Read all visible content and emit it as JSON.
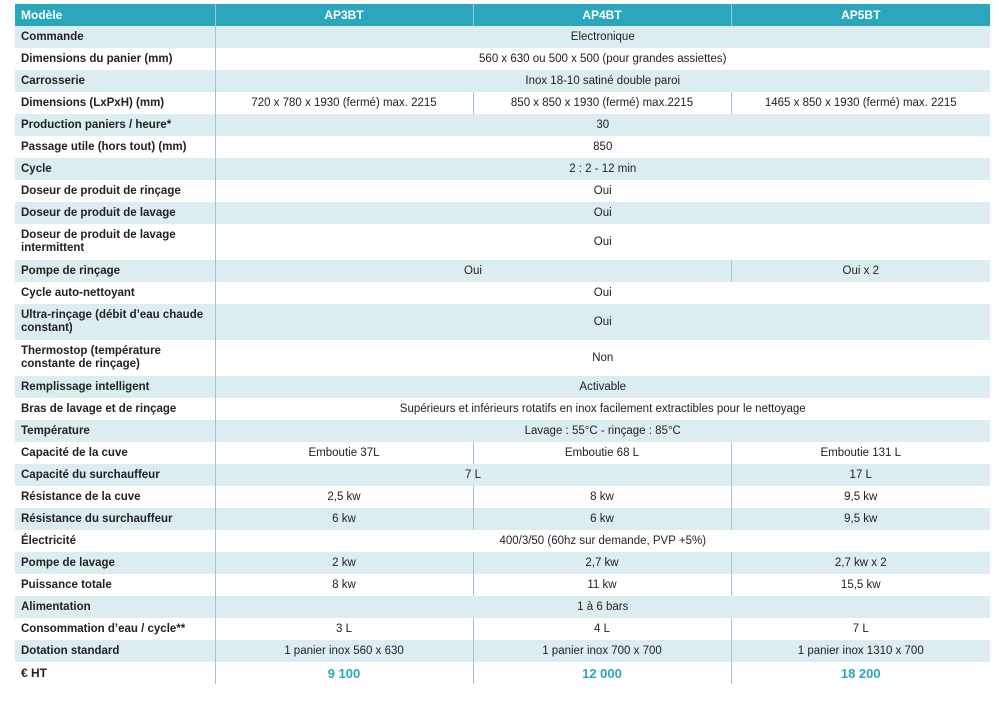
{
  "header": {
    "label": "Modèle",
    "models": [
      "AP3BT",
      "AP4BT",
      "AP5BT"
    ]
  },
  "rows": [
    {
      "label": "Commande",
      "cells": [
        {
          "text": "Electronique",
          "span": 3
        }
      ]
    },
    {
      "label": "Dimensions du panier (mm)",
      "cells": [
        {
          "text": "560 x 630 ou 500 x 500 (pour grandes assiettes)",
          "span": 3
        }
      ]
    },
    {
      "label": "Carrosserie",
      "cells": [
        {
          "text": "Inox 18-10 satiné double paroi",
          "span": 3
        }
      ]
    },
    {
      "label": "Dimensions (LxPxH) (mm)",
      "cells": [
        {
          "text": "720 x 780 x 1930 (fermé) max. 2215",
          "span": 1
        },
        {
          "text": "850 x 850 x 1930 (fermé) max.2215",
          "span": 1
        },
        {
          "text": "1465 x 850 x 1930 (fermé) max. 2215",
          "span": 1
        }
      ]
    },
    {
      "label": "Production paniers / heure*",
      "cells": [
        {
          "text": "30",
          "span": 3
        }
      ]
    },
    {
      "label": "Passage utile (hors tout) (mm)",
      "cells": [
        {
          "text": "850",
          "span": 3
        }
      ]
    },
    {
      "label": "Cycle",
      "cells": [
        {
          "text": "2 : 2 - 12 min",
          "span": 3
        }
      ]
    },
    {
      "label": "Doseur de produit de rinçage",
      "cells": [
        {
          "text": "Oui",
          "span": 3
        }
      ]
    },
    {
      "label": "Doseur de produit de lavage",
      "cells": [
        {
          "text": "Oui",
          "span": 3
        }
      ]
    },
    {
      "label": "Doseur de produit de lavage intermittent",
      "tall": true,
      "cells": [
        {
          "text": "Oui",
          "span": 3
        }
      ]
    },
    {
      "label": "Pompe de rinçage",
      "cells": [
        {
          "text": "Oui",
          "span": 2
        },
        {
          "text": "Oui x 2",
          "span": 1
        }
      ]
    },
    {
      "label": "Cycle auto-nettoyant",
      "cells": [
        {
          "text": "Oui",
          "span": 3
        }
      ]
    },
    {
      "label": "Ultra-rinçage (débit d’eau chaude constant)",
      "tall": true,
      "cells": [
        {
          "text": "Oui",
          "span": 3
        }
      ]
    },
    {
      "label": "Thermostop (température constante de rinçage)",
      "tall": true,
      "cells": [
        {
          "text": "Non",
          "span": 3
        }
      ]
    },
    {
      "label": "Remplissage intelligent",
      "cells": [
        {
          "text": "Activable",
          "span": 3
        }
      ]
    },
    {
      "label": "Bras de lavage et de rinçage",
      "cells": [
        {
          "text": "Supérieurs et inférieurs rotatifs en inox facilement extractibles pour le nettoyage",
          "span": 3
        }
      ]
    },
    {
      "label": "Température",
      "cells": [
        {
          "text": "Lavage : 55°C - rinçage : 85°C",
          "span": 3
        }
      ]
    },
    {
      "label": "Capacité de la cuve",
      "cells": [
        {
          "text": "Emboutie 37L",
          "span": 1
        },
        {
          "text": "Emboutie 68 L",
          "span": 1
        },
        {
          "text": "Emboutie 131 L",
          "span": 1
        }
      ]
    },
    {
      "label": "Capacité du surchauffeur",
      "cells": [
        {
          "text": "7 L",
          "span": 2
        },
        {
          "text": "17 L",
          "span": 1
        }
      ]
    },
    {
      "label": "Résistance de la cuve",
      "cells": [
        {
          "text": "2,5 kw",
          "span": 1
        },
        {
          "text": "8 kw",
          "span": 1
        },
        {
          "text": "9,5 kw",
          "span": 1
        }
      ]
    },
    {
      "label": "Résistance du surchauffeur",
      "cells": [
        {
          "text": "6 kw",
          "span": 1
        },
        {
          "text": "6 kw",
          "span": 1
        },
        {
          "text": "9,5 kw",
          "span": 1
        }
      ]
    },
    {
      "label": "Électricité",
      "cells": [
        {
          "text": "400/3/50 (60hz sur demande, PVP +5%)",
          "span": 3
        }
      ]
    },
    {
      "label": "Pompe de lavage",
      "cells": [
        {
          "text": "2 kw",
          "span": 1
        },
        {
          "text": "2,7 kw",
          "span": 1
        },
        {
          "text": "2,7 kw x 2",
          "span": 1
        }
      ]
    },
    {
      "label": "Puissance totale",
      "cells": [
        {
          "text": "8 kw",
          "span": 1
        },
        {
          "text": "11 kw",
          "span": 1
        },
        {
          "text": "15,5 kw",
          "span": 1
        }
      ]
    },
    {
      "label": "Alimentation",
      "cells": [
        {
          "text": "1 à 6 bars",
          "span": 3
        }
      ]
    },
    {
      "label": "Consommation d’eau / cycle**",
      "cells": [
        {
          "text": "3 L",
          "span": 1
        },
        {
          "text": "4 L",
          "span": 1
        },
        {
          "text": "7 L",
          "span": 1
        }
      ]
    },
    {
      "label": "Dotation standard",
      "cells": [
        {
          "text": "1 panier inox 560 x 630",
          "span": 1
        },
        {
          "text": "1 panier inox 700 x 700",
          "span": 1
        },
        {
          "text": "1 panier inox 1310 x 700",
          "span": 1
        }
      ]
    },
    {
      "label": "€ HT",
      "price": true,
      "cells": [
        {
          "text": "9 100",
          "span": 1
        },
        {
          "text": "12 000",
          "span": 1
        },
        {
          "text": "18 200",
          "span": 1
        }
      ]
    }
  ],
  "colors": {
    "header_bg": "#2aa6bd",
    "stripe_bg": "#dcedf2",
    "price_text": "#2aa6bd"
  }
}
